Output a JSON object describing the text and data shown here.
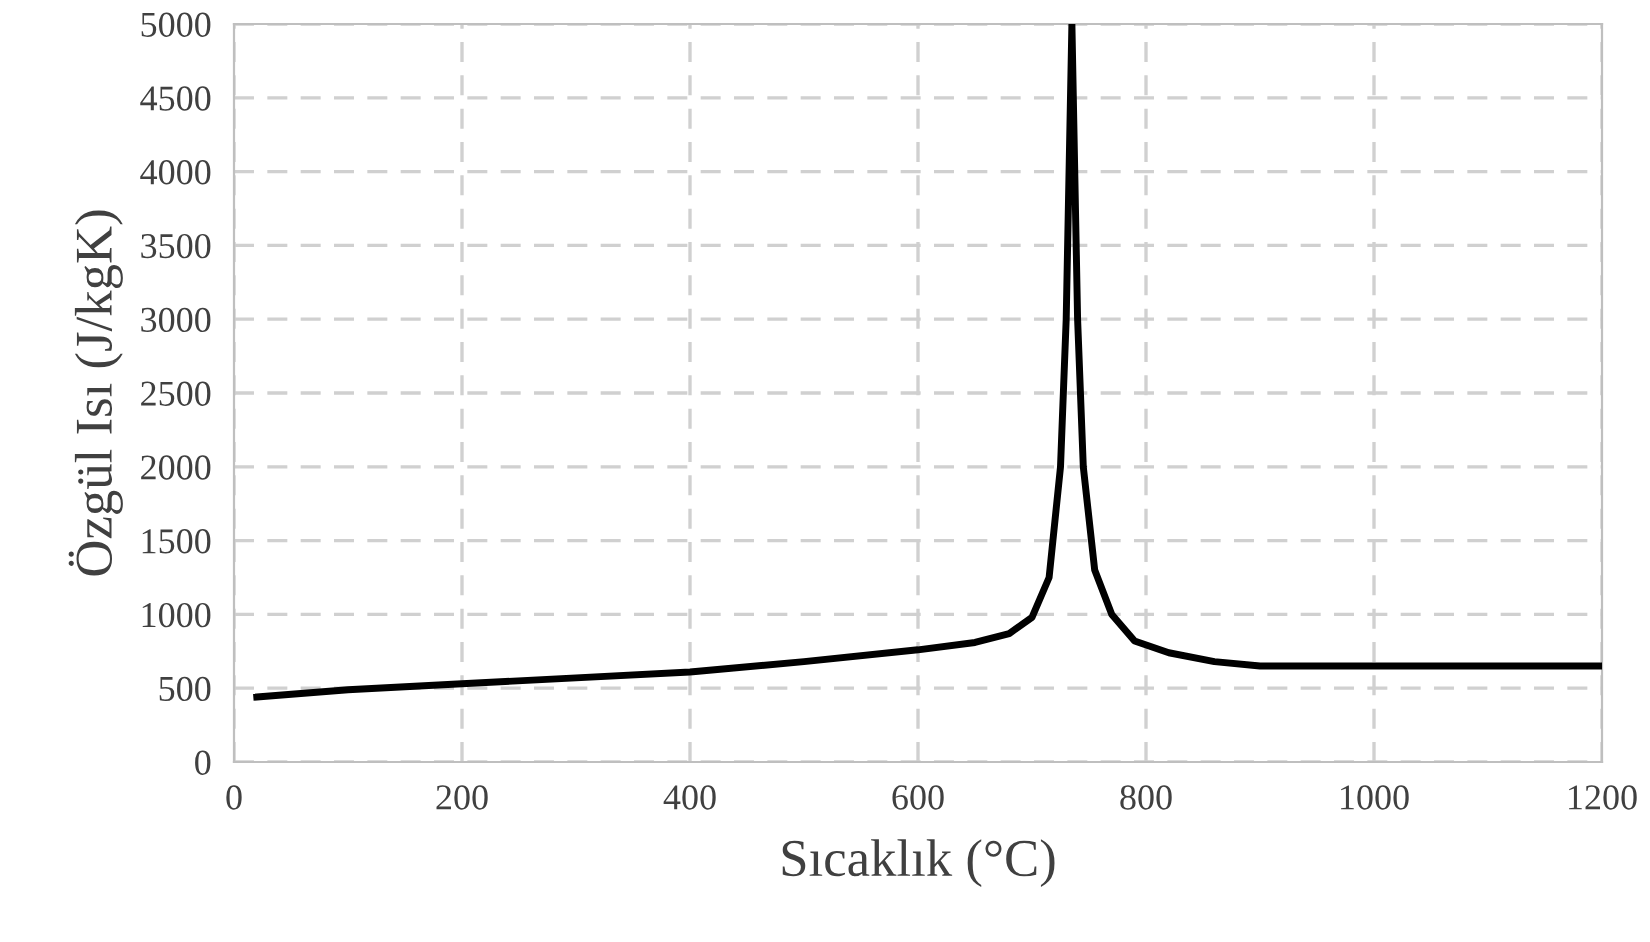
{
  "chart_data": {
    "type": "line",
    "xlabel": "Sıcaklık (°C)",
    "ylabel": "Özgül Isı (J/kgK)",
    "x": [
      20,
      100,
      200,
      300,
      400,
      500,
      600,
      650,
      680,
      700,
      715,
      725,
      730,
      735,
      740,
      745,
      755,
      770,
      790,
      820,
      860,
      900,
      1000,
      1100,
      1200
    ],
    "series": [
      {
        "color": "#000000",
        "values": [
          440,
          490,
          530,
          570,
          610,
          680,
          760,
          810,
          870,
          980,
          1250,
          2000,
          3000,
          5000,
          3000,
          2000,
          1300,
          1000,
          820,
          740,
          680,
          650,
          650,
          650,
          650
        ]
      }
    ],
    "xlim": [
      0,
      1200
    ],
    "xticks": [
      0,
      200,
      400,
      600,
      800,
      1000,
      1200
    ],
    "ylim": [
      0,
      5000
    ],
    "yticks": [
      0,
      500,
      1000,
      1500,
      2000,
      2500,
      3000,
      3500,
      4000,
      4500,
      5000
    ],
    "grid": true,
    "line_style": "solid",
    "marker": "none"
  }
}
